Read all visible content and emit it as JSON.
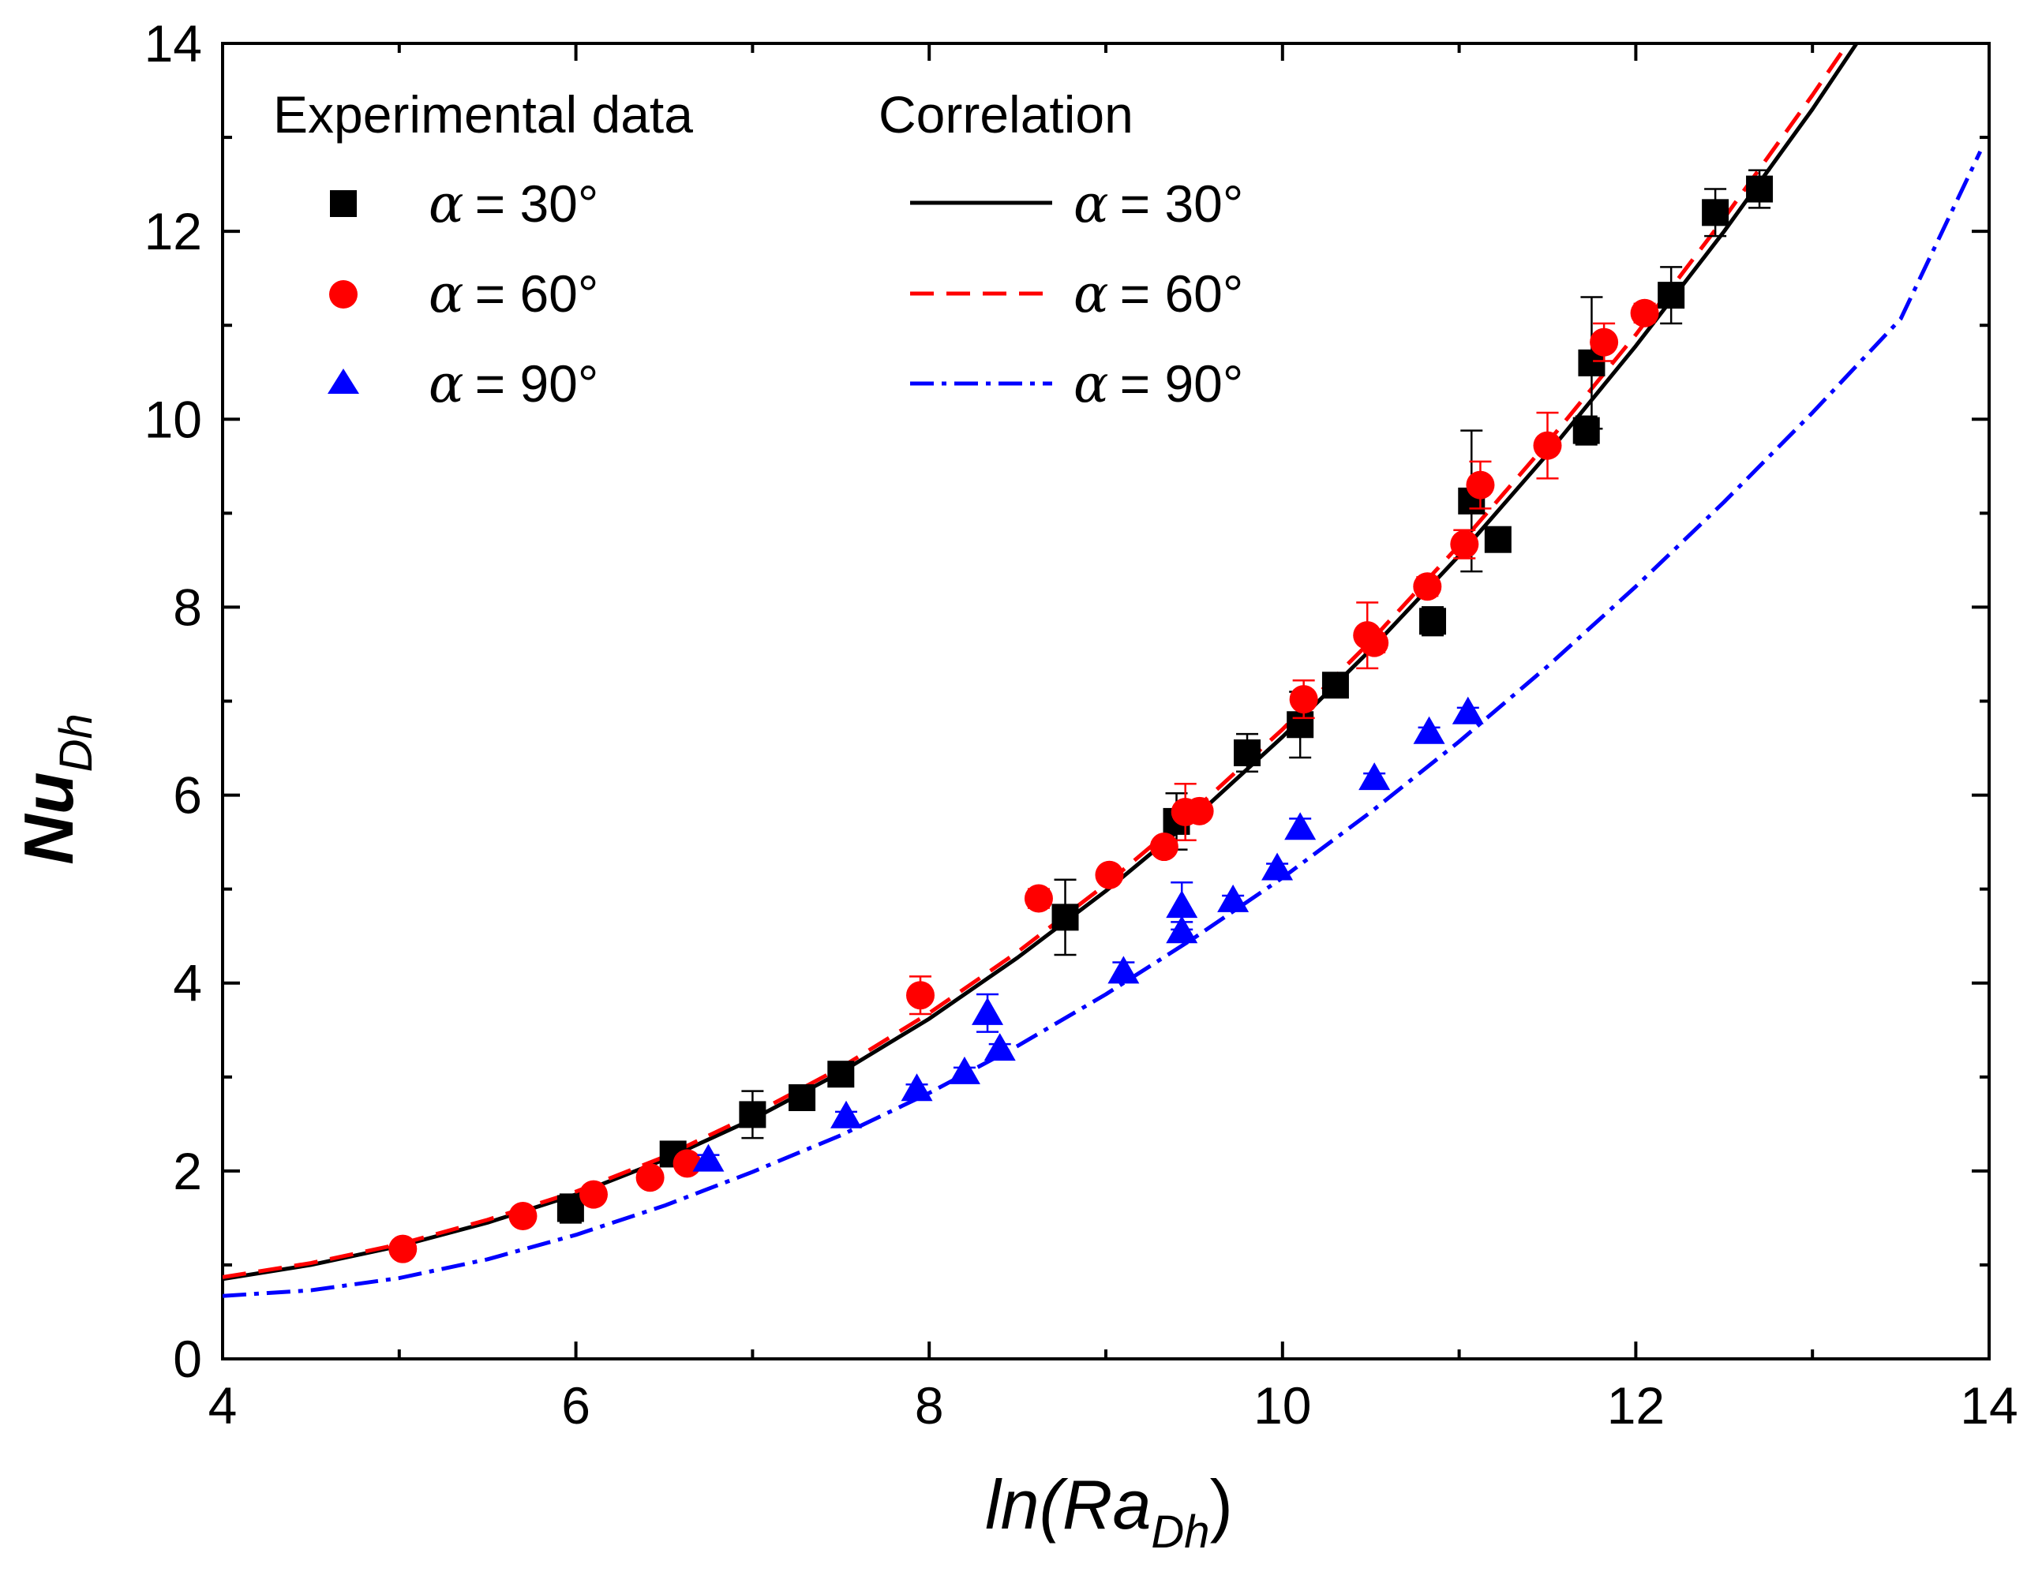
{
  "chart_data": {
    "type": "scatter",
    "xlim": [
      4,
      14
    ],
    "ylim": [
      0,
      14
    ],
    "x_ticks": [
      4,
      6,
      8,
      10,
      12,
      14
    ],
    "y_ticks": [
      0,
      2,
      4,
      6,
      8,
      10,
      12,
      14
    ],
    "xlabel": {
      "prefix": "ln(",
      "main": "Ra",
      "sub": "Dh",
      "suffix": ")"
    },
    "ylabel": {
      "main": "Nu",
      "sub": "Dh"
    },
    "legend": {
      "experimental_title": "Experimental data",
      "correlation_title": "Correlation",
      "alpha_symbol": "α",
      "entries": [
        "= 30°",
        "= 60°",
        "= 90°"
      ]
    },
    "series": [
      {
        "name": "Experimental α = 30°",
        "kind": "points",
        "marker": "square",
        "color": "#000000",
        "points": [
          [
            5.97,
            1.6
          ],
          [
            6.55,
            2.18
          ],
          [
            7.0,
            2.6
          ],
          [
            7.28,
            2.78
          ],
          [
            7.5,
            3.03
          ],
          [
            8.77,
            4.7
          ],
          [
            9.4,
            5.72
          ],
          [
            9.8,
            6.45
          ],
          [
            10.1,
            6.75
          ],
          [
            10.3,
            7.17
          ],
          [
            10.85,
            7.85
          ],
          [
            11.07,
            9.13
          ],
          [
            11.22,
            8.72
          ],
          [
            11.72,
            9.88
          ],
          [
            11.75,
            10.6
          ],
          [
            12.2,
            11.32
          ],
          [
            12.45,
            12.2
          ],
          [
            12.7,
            12.45
          ]
        ],
        "errors": [
          0.15,
          0.1,
          0.25,
          0.1,
          0.1,
          0.4,
          0.3,
          0.2,
          0.35,
          0.1,
          0.15,
          0.75,
          0.1,
          0.15,
          0.7,
          0.3,
          0.25,
          0.2
        ]
      },
      {
        "name": "Experimental α = 60°",
        "kind": "points",
        "marker": "circle",
        "color": "#ff0000",
        "points": [
          [
            5.02,
            1.17
          ],
          [
            5.7,
            1.52
          ],
          [
            6.1,
            1.75
          ],
          [
            6.42,
            1.93
          ],
          [
            6.63,
            2.08
          ],
          [
            7.95,
            3.87
          ],
          [
            8.62,
            4.9
          ],
          [
            9.02,
            5.15
          ],
          [
            9.33,
            5.45
          ],
          [
            9.45,
            5.82
          ],
          [
            9.53,
            5.83
          ],
          [
            10.12,
            7.02
          ],
          [
            10.48,
            7.7
          ],
          [
            10.52,
            7.62
          ],
          [
            10.82,
            8.22
          ],
          [
            11.03,
            8.67
          ],
          [
            11.12,
            9.3
          ],
          [
            11.5,
            9.72
          ],
          [
            11.82,
            10.82
          ],
          [
            12.05,
            11.13
          ]
        ],
        "errors": [
          0.08,
          0.05,
          0.05,
          0.05,
          0.05,
          0.2,
          0.1,
          0.08,
          0.08,
          0.3,
          0.08,
          0.2,
          0.35,
          0.1,
          0.1,
          0.15,
          0.25,
          0.35,
          0.2,
          0.1
        ]
      },
      {
        "name": "Experimental α = 90°",
        "kind": "points",
        "marker": "triangle",
        "color": "#0000ff",
        "points": [
          [
            6.75,
            2.12
          ],
          [
            7.53,
            2.58
          ],
          [
            7.93,
            2.87
          ],
          [
            8.2,
            3.05
          ],
          [
            8.33,
            3.68
          ],
          [
            8.4,
            3.3
          ],
          [
            9.1,
            4.12
          ],
          [
            9.43,
            4.82
          ],
          [
            9.43,
            4.55
          ],
          [
            9.72,
            4.88
          ],
          [
            9.97,
            5.22
          ],
          [
            10.1,
            5.65
          ],
          [
            10.52,
            6.18
          ],
          [
            10.83,
            6.67
          ],
          [
            11.05,
            6.88
          ]
        ],
        "errors": [
          0.05,
          0.05,
          0.05,
          0.05,
          0.2,
          0.05,
          0.1,
          0.25,
          0.1,
          0.05,
          0.05,
          0.1,
          0.05,
          0.05,
          0.05
        ]
      },
      {
        "name": "Correlation α = 30°",
        "kind": "line",
        "style": "solid",
        "color": "#000000",
        "x": [
          4.0,
          4.5,
          5.0,
          5.5,
          6.0,
          6.5,
          7.0,
          7.5,
          8.0,
          8.5,
          9.0,
          9.5,
          10.0,
          10.5,
          11.0,
          11.5,
          12.0,
          12.5,
          13.0,
          13.25
        ],
        "values": [
          0.85,
          1.0,
          1.2,
          1.45,
          1.75,
          2.12,
          2.55,
          3.05,
          3.62,
          4.27,
          4.98,
          5.76,
          6.62,
          7.55,
          8.55,
          9.63,
          10.78,
          12.0,
          13.3,
          14.0
        ]
      },
      {
        "name": "Correlation α = 60°",
        "kind": "line",
        "style": "dashed",
        "color": "#ff0000",
        "x": [
          4.0,
          4.5,
          5.0,
          5.5,
          6.0,
          6.5,
          7.0,
          7.5,
          8.0,
          8.5,
          9.0,
          9.5,
          10.0,
          10.5,
          11.0,
          11.5,
          12.0,
          12.5,
          13.0,
          13.2
        ],
        "values": [
          0.87,
          1.02,
          1.22,
          1.48,
          1.78,
          2.15,
          2.6,
          3.1,
          3.68,
          4.33,
          5.05,
          5.84,
          6.7,
          7.64,
          8.66,
          9.75,
          10.9,
          12.14,
          13.45,
          14.0
        ]
      },
      {
        "name": "Correlation α = 90°",
        "kind": "line",
        "style": "dashdot",
        "color": "#0000ff",
        "x": [
          4.0,
          4.5,
          5.0,
          5.5,
          6.0,
          6.5,
          7.0,
          7.5,
          8.0,
          8.5,
          9.0,
          9.5,
          10.0,
          10.5,
          11.0,
          11.5,
          12.0,
          12.5,
          13.0,
          13.5,
          13.95
        ],
        "values": [
          0.67,
          0.73,
          0.86,
          1.06,
          1.32,
          1.63,
          1.99,
          2.38,
          2.83,
          3.33,
          3.88,
          4.48,
          5.12,
          5.82,
          6.57,
          7.37,
          8.22,
          9.12,
          10.07,
          11.07,
          12.85
        ]
      }
    ]
  }
}
